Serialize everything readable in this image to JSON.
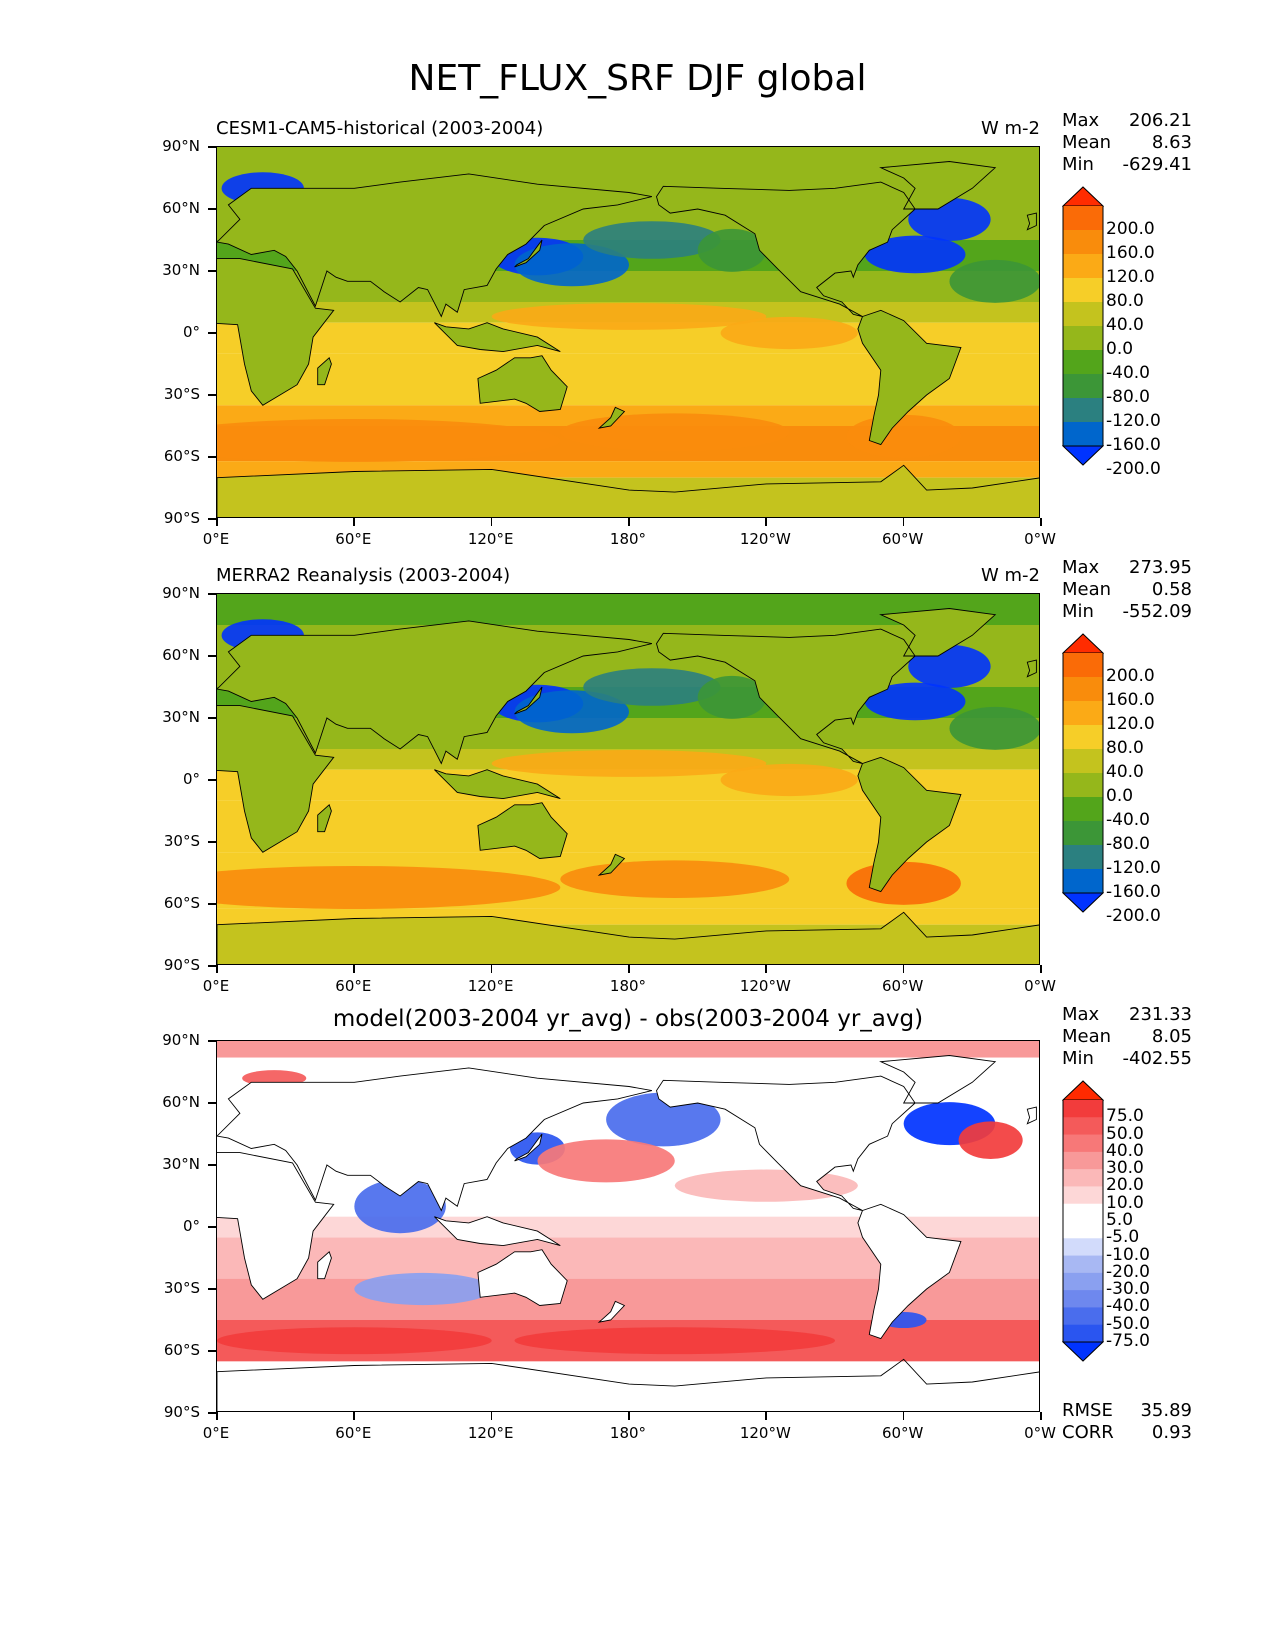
{
  "figure_title": "NET_FLUX_SRF DJF global",
  "icons": {
    "map_icon": "world-map-icon"
  },
  "colors": {
    "abs_levels": [
      "#0033ff",
      "#0066cc",
      "#2b8080",
      "#3c9637",
      "#53a51b",
      "#95b71b",
      "#c4c31e",
      "#f6ce28",
      "#fbaa16",
      "#f98c0c",
      "#fa6b07",
      "#ff2c00"
    ],
    "diff_levels": [
      "#0033ff",
      "#2a55f0",
      "#4a6ded",
      "#6e88ee",
      "#8aa0f0",
      "#a8b8f3",
      "#d2dbfb",
      "#ffffff",
      "#ffffff",
      "#fdd7d7",
      "#fbb8b8",
      "#f89999",
      "#f77878",
      "#f45a5a",
      "#f23c3c",
      "#ff2a00"
    ],
    "land_abs": "#95b71b",
    "land_diff": "#ffffff"
  },
  "chart_data": [
    {
      "type": "heatmap",
      "title": "CESM1-CAM5-historical (2003-2004)",
      "units": "W m-2",
      "stats": {
        "max": "206.21",
        "mean": "8.63",
        "min": "-629.41"
      },
      "xticks": [
        "0°E",
        "60°E",
        "120°E",
        "180°",
        "120°W",
        "60°W",
        "0°W"
      ],
      "yticks": [
        "90°N",
        "60°N",
        "30°N",
        "0°",
        "30°S",
        "60°S",
        "90°S"
      ],
      "xlim": [
        0,
        360
      ],
      "ylim": [
        -90,
        90
      ],
      "colorbar_levels": [
        "200.0",
        "160.0",
        "120.0",
        "80.0",
        "40.0",
        "0.0",
        "-40.0",
        "-80.0",
        "-120.0",
        "-160.0",
        "-200.0"
      ]
    },
    {
      "type": "heatmap",
      "title": "MERRA2 Reanalysis (2003-2004)",
      "units": "W m-2",
      "stats": {
        "max": "273.95",
        "mean": "0.58",
        "min": "-552.09"
      },
      "xticks": [
        "0°E",
        "60°E",
        "120°E",
        "180°",
        "120°W",
        "60°W",
        "0°W"
      ],
      "yticks": [
        "90°N",
        "60°N",
        "30°N",
        "0°",
        "30°S",
        "60°S",
        "90°S"
      ],
      "xlim": [
        0,
        360
      ],
      "ylim": [
        -90,
        90
      ],
      "colorbar_levels": [
        "200.0",
        "160.0",
        "120.0",
        "80.0",
        "40.0",
        "0.0",
        "-40.0",
        "-80.0",
        "-120.0",
        "-160.0",
        "-200.0"
      ]
    },
    {
      "type": "heatmap",
      "title": "model(2003-2004 yr_avg) - obs(2003-2004 yr_avg)",
      "stats": {
        "max": "231.33",
        "mean": "8.05",
        "min": "-402.55"
      },
      "rmse": "35.89",
      "corr": "0.93",
      "stats_labels": {
        "max": "Max",
        "mean": "Mean",
        "min": "Min",
        "rmse": "RMSE",
        "corr": "CORR"
      },
      "xticks": [
        "0°E",
        "60°E",
        "120°E",
        "180°",
        "120°W",
        "60°W",
        "0°W"
      ],
      "yticks": [
        "90°N",
        "60°N",
        "30°N",
        "0°",
        "30°S",
        "60°S",
        "90°S"
      ],
      "xlim": [
        0,
        360
      ],
      "ylim": [
        -90,
        90
      ],
      "colorbar_levels": [
        "75.0",
        "50.0",
        "40.0",
        "30.0",
        "20.0",
        "10.0",
        "5.0",
        "-5.0",
        "-10.0",
        "-20.0",
        "-30.0",
        "-40.0",
        "-50.0",
        "-75.0"
      ]
    }
  ]
}
